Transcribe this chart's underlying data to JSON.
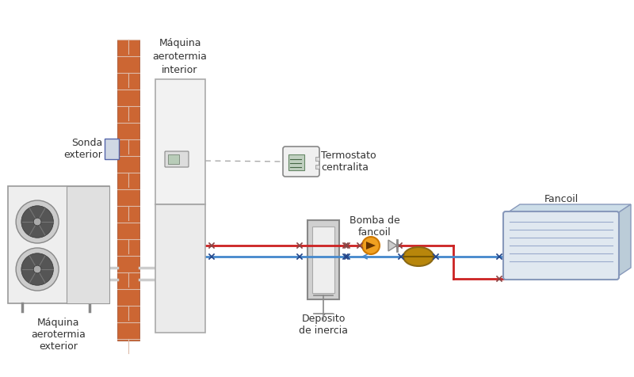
{
  "bg_color": "#ffffff",
  "text_color": "#333333",
  "red_pipe": "#cc2222",
  "blue_pipe": "#4488cc",
  "gray_pipe": "#888888",
  "wall_color": "#cc6633",
  "label_fontsize": 9,
  "labels": {
    "ext_machine": "Máquina\naerotermia\nexterior",
    "int_machine": "Máquina\naerotermia\ninterior",
    "sonda": "Sonda\nexterior",
    "thermostat": "Termostato\ncentralita",
    "deposito": "Depósito\nde inercia",
    "bomba": "Bomba de\nfancoil",
    "fancoil": "Fancoil"
  },
  "pipe_lw": 2.0
}
